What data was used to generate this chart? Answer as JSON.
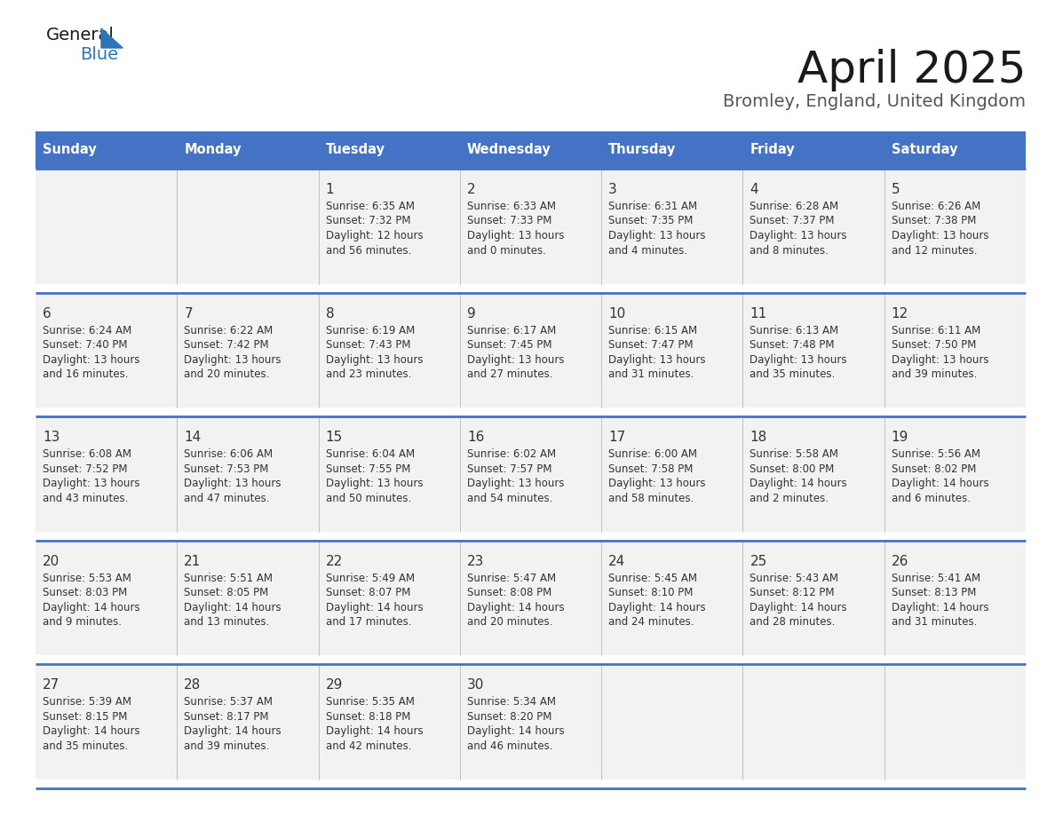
{
  "title": "April 2025",
  "subtitle": "Bromley, England, United Kingdom",
  "header_bg": "#4472c4",
  "header_text_color": "#ffffff",
  "cell_bg": "#f2f2f2",
  "border_color": "#4472c4",
  "text_color": "#333333",
  "day_headers": [
    "Sunday",
    "Monday",
    "Tuesday",
    "Wednesday",
    "Thursday",
    "Friday",
    "Saturday"
  ],
  "calendar": [
    [
      {
        "day": "",
        "sunrise": "",
        "sunset": "",
        "daylight1": "",
        "daylight2": ""
      },
      {
        "day": "",
        "sunrise": "",
        "sunset": "",
        "daylight1": "",
        "daylight2": ""
      },
      {
        "day": "1",
        "sunrise": "Sunrise: 6:35 AM",
        "sunset": "Sunset: 7:32 PM",
        "daylight1": "Daylight: 12 hours",
        "daylight2": "and 56 minutes."
      },
      {
        "day": "2",
        "sunrise": "Sunrise: 6:33 AM",
        "sunset": "Sunset: 7:33 PM",
        "daylight1": "Daylight: 13 hours",
        "daylight2": "and 0 minutes."
      },
      {
        "day": "3",
        "sunrise": "Sunrise: 6:31 AM",
        "sunset": "Sunset: 7:35 PM",
        "daylight1": "Daylight: 13 hours",
        "daylight2": "and 4 minutes."
      },
      {
        "day": "4",
        "sunrise": "Sunrise: 6:28 AM",
        "sunset": "Sunset: 7:37 PM",
        "daylight1": "Daylight: 13 hours",
        "daylight2": "and 8 minutes."
      },
      {
        "day": "5",
        "sunrise": "Sunrise: 6:26 AM",
        "sunset": "Sunset: 7:38 PM",
        "daylight1": "Daylight: 13 hours",
        "daylight2": "and 12 minutes."
      }
    ],
    [
      {
        "day": "6",
        "sunrise": "Sunrise: 6:24 AM",
        "sunset": "Sunset: 7:40 PM",
        "daylight1": "Daylight: 13 hours",
        "daylight2": "and 16 minutes."
      },
      {
        "day": "7",
        "sunrise": "Sunrise: 6:22 AM",
        "sunset": "Sunset: 7:42 PM",
        "daylight1": "Daylight: 13 hours",
        "daylight2": "and 20 minutes."
      },
      {
        "day": "8",
        "sunrise": "Sunrise: 6:19 AM",
        "sunset": "Sunset: 7:43 PM",
        "daylight1": "Daylight: 13 hours",
        "daylight2": "and 23 minutes."
      },
      {
        "day": "9",
        "sunrise": "Sunrise: 6:17 AM",
        "sunset": "Sunset: 7:45 PM",
        "daylight1": "Daylight: 13 hours",
        "daylight2": "and 27 minutes."
      },
      {
        "day": "10",
        "sunrise": "Sunrise: 6:15 AM",
        "sunset": "Sunset: 7:47 PM",
        "daylight1": "Daylight: 13 hours",
        "daylight2": "and 31 minutes."
      },
      {
        "day": "11",
        "sunrise": "Sunrise: 6:13 AM",
        "sunset": "Sunset: 7:48 PM",
        "daylight1": "Daylight: 13 hours",
        "daylight2": "and 35 minutes."
      },
      {
        "day": "12",
        "sunrise": "Sunrise: 6:11 AM",
        "sunset": "Sunset: 7:50 PM",
        "daylight1": "Daylight: 13 hours",
        "daylight2": "and 39 minutes."
      }
    ],
    [
      {
        "day": "13",
        "sunrise": "Sunrise: 6:08 AM",
        "sunset": "Sunset: 7:52 PM",
        "daylight1": "Daylight: 13 hours",
        "daylight2": "and 43 minutes."
      },
      {
        "day": "14",
        "sunrise": "Sunrise: 6:06 AM",
        "sunset": "Sunset: 7:53 PM",
        "daylight1": "Daylight: 13 hours",
        "daylight2": "and 47 minutes."
      },
      {
        "day": "15",
        "sunrise": "Sunrise: 6:04 AM",
        "sunset": "Sunset: 7:55 PM",
        "daylight1": "Daylight: 13 hours",
        "daylight2": "and 50 minutes."
      },
      {
        "day": "16",
        "sunrise": "Sunrise: 6:02 AM",
        "sunset": "Sunset: 7:57 PM",
        "daylight1": "Daylight: 13 hours",
        "daylight2": "and 54 minutes."
      },
      {
        "day": "17",
        "sunrise": "Sunrise: 6:00 AM",
        "sunset": "Sunset: 7:58 PM",
        "daylight1": "Daylight: 13 hours",
        "daylight2": "and 58 minutes."
      },
      {
        "day": "18",
        "sunrise": "Sunrise: 5:58 AM",
        "sunset": "Sunset: 8:00 PM",
        "daylight1": "Daylight: 14 hours",
        "daylight2": "and 2 minutes."
      },
      {
        "day": "19",
        "sunrise": "Sunrise: 5:56 AM",
        "sunset": "Sunset: 8:02 PM",
        "daylight1": "Daylight: 14 hours",
        "daylight2": "and 6 minutes."
      }
    ],
    [
      {
        "day": "20",
        "sunrise": "Sunrise: 5:53 AM",
        "sunset": "Sunset: 8:03 PM",
        "daylight1": "Daylight: 14 hours",
        "daylight2": "and 9 minutes."
      },
      {
        "day": "21",
        "sunrise": "Sunrise: 5:51 AM",
        "sunset": "Sunset: 8:05 PM",
        "daylight1": "Daylight: 14 hours",
        "daylight2": "and 13 minutes."
      },
      {
        "day": "22",
        "sunrise": "Sunrise: 5:49 AM",
        "sunset": "Sunset: 8:07 PM",
        "daylight1": "Daylight: 14 hours",
        "daylight2": "and 17 minutes."
      },
      {
        "day": "23",
        "sunrise": "Sunrise: 5:47 AM",
        "sunset": "Sunset: 8:08 PM",
        "daylight1": "Daylight: 14 hours",
        "daylight2": "and 20 minutes."
      },
      {
        "day": "24",
        "sunrise": "Sunrise: 5:45 AM",
        "sunset": "Sunset: 8:10 PM",
        "daylight1": "Daylight: 14 hours",
        "daylight2": "and 24 minutes."
      },
      {
        "day": "25",
        "sunrise": "Sunrise: 5:43 AM",
        "sunset": "Sunset: 8:12 PM",
        "daylight1": "Daylight: 14 hours",
        "daylight2": "and 28 minutes."
      },
      {
        "day": "26",
        "sunrise": "Sunrise: 5:41 AM",
        "sunset": "Sunset: 8:13 PM",
        "daylight1": "Daylight: 14 hours",
        "daylight2": "and 31 minutes."
      }
    ],
    [
      {
        "day": "27",
        "sunrise": "Sunrise: 5:39 AM",
        "sunset": "Sunset: 8:15 PM",
        "daylight1": "Daylight: 14 hours",
        "daylight2": "and 35 minutes."
      },
      {
        "day": "28",
        "sunrise": "Sunrise: 5:37 AM",
        "sunset": "Sunset: 8:17 PM",
        "daylight1": "Daylight: 14 hours",
        "daylight2": "and 39 minutes."
      },
      {
        "day": "29",
        "sunrise": "Sunrise: 5:35 AM",
        "sunset": "Sunset: 8:18 PM",
        "daylight1": "Daylight: 14 hours",
        "daylight2": "and 42 minutes."
      },
      {
        "day": "30",
        "sunrise": "Sunrise: 5:34 AM",
        "sunset": "Sunset: 8:20 PM",
        "daylight1": "Daylight: 14 hours",
        "daylight2": "and 46 minutes."
      },
      {
        "day": "",
        "sunrise": "",
        "sunset": "",
        "daylight1": "",
        "daylight2": ""
      },
      {
        "day": "",
        "sunrise": "",
        "sunset": "",
        "daylight1": "",
        "daylight2": ""
      },
      {
        "day": "",
        "sunrise": "",
        "sunset": "",
        "daylight1": "",
        "daylight2": ""
      }
    ]
  ]
}
